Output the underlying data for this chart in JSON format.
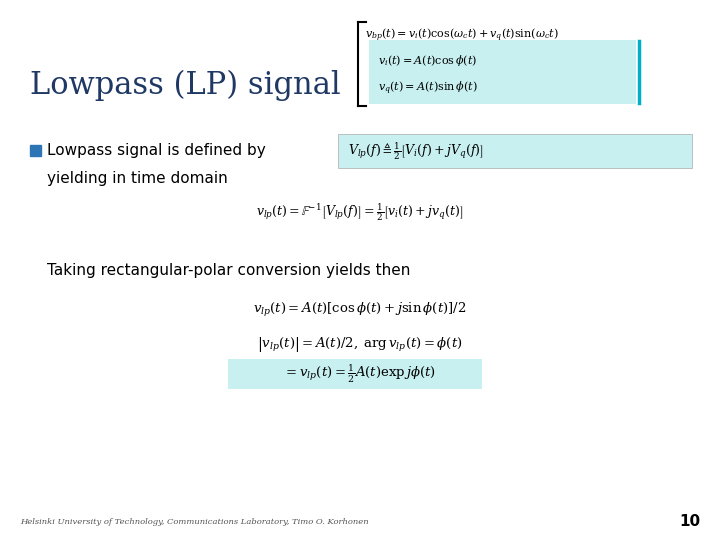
{
  "background_color": "#ffffff",
  "title_text": "Lowpass (LP) signal",
  "title_color": "#1f3864",
  "title_fontsize": 22,
  "bullet_color": "#2e75b6",
  "highlight_color": "#c8f0f0",
  "footer_text": "Helsinki University of Technology, Communications Laboratory, Timo O. Korhonen",
  "page_number": "10",
  "eq_top1": "$v_{bp}(t) = v_i(t)\\cos(\\omega_c t) + v_q(t)\\sin(\\omega_c t)$",
  "eq_top2": "$v_i(t) = A(t)\\cos\\phi(t)$",
  "eq_top3": "$v_q(t) = A(t)\\sin\\phi(t)$",
  "bullet_text1": "Lowpass signal is defined by",
  "bullet_text2": "yielding in time domain",
  "eq_defined": "$V_{lp}(f) \\triangleq \\frac{1}{2}\\left[V_i(f) + jV_q(f)\\right]$",
  "eq_time_domain": "$v_{lp}(t) = \\mathbb{F}^{-1}\\left[V_{lp}(f)\\right] = \\frac{1}{2}\\left[v_i(t) + jv_q(t)\\right]$",
  "taking_text": "Taking rectangular-polar conversion yields then",
  "eq_polar1": "$v_{lp}(t) = A(t)\\left[\\cos\\phi(t) + j\\sin\\phi(t)\\right]/2$",
  "eq_polar2": "$\\left|v_{lp}(t)\\right| = A(t)/2, \\; \\arg v_{lp}(t) = \\phi(t)$",
  "eq_polar3": "$= v_{lp}(t) = \\frac{1}{2}A(t)\\exp j\\phi(t)$"
}
